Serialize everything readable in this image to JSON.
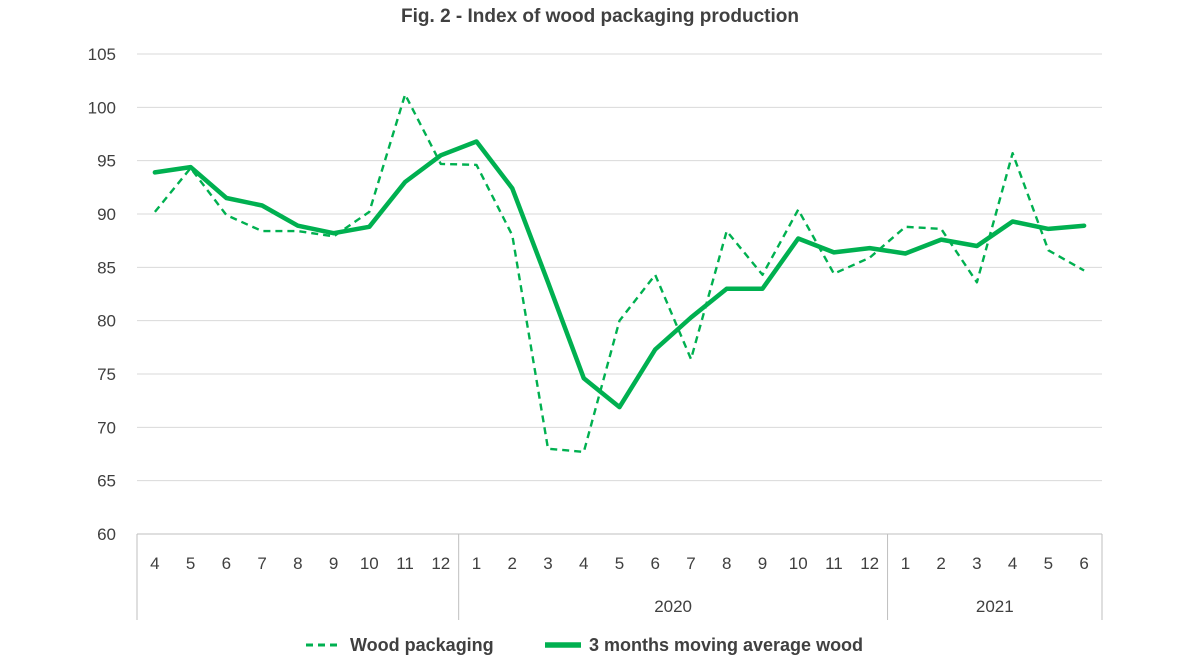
{
  "chart_data": {
    "type": "line",
    "title": "Fig. 2 - Index of wood packaging production",
    "xlabel": "",
    "ylabel": "",
    "ylim": [
      60,
      105
    ],
    "yticks": [
      60,
      65,
      70,
      75,
      80,
      85,
      90,
      95,
      100,
      105
    ],
    "grid": true,
    "legend_position": "bottom",
    "x": [
      "4",
      "5",
      "6",
      "7",
      "8",
      "9",
      "10",
      "11",
      "12",
      "1",
      "2",
      "3",
      "4",
      "5",
      "6",
      "7",
      "8",
      "9",
      "10",
      "11",
      "12",
      "1",
      "2",
      "3",
      "4",
      "5",
      "6"
    ],
    "year_groups": [
      {
        "label": "",
        "count": 9
      },
      {
        "label": "2020",
        "count": 12
      },
      {
        "label": "2021",
        "count": 6
      }
    ],
    "series": [
      {
        "name": "Wood packaging",
        "style": "dashed",
        "color": "#00b050",
        "values": [
          90.2,
          94.3,
          89.9,
          88.4,
          88.4,
          87.9,
          90.2,
          101.2,
          94.7,
          94.6,
          88.0,
          68.0,
          67.7,
          80.0,
          84.3,
          76.4,
          88.4,
          84.3,
          90.4,
          84.4,
          85.9,
          88.8,
          88.6,
          83.6,
          95.7,
          86.6,
          84.7
        ]
      },
      {
        "name": "3 months moving average wood",
        "style": "solid",
        "color": "#00b050",
        "values": [
          93.9,
          94.4,
          91.5,
          90.8,
          88.9,
          88.2,
          88.8,
          93.0,
          95.5,
          96.8,
          92.4,
          83.6,
          74.6,
          71.9,
          77.3,
          80.3,
          83.0,
          83.0,
          87.7,
          86.4,
          86.8,
          86.3,
          87.6,
          87.0,
          89.3,
          88.6,
          88.9
        ]
      }
    ]
  }
}
